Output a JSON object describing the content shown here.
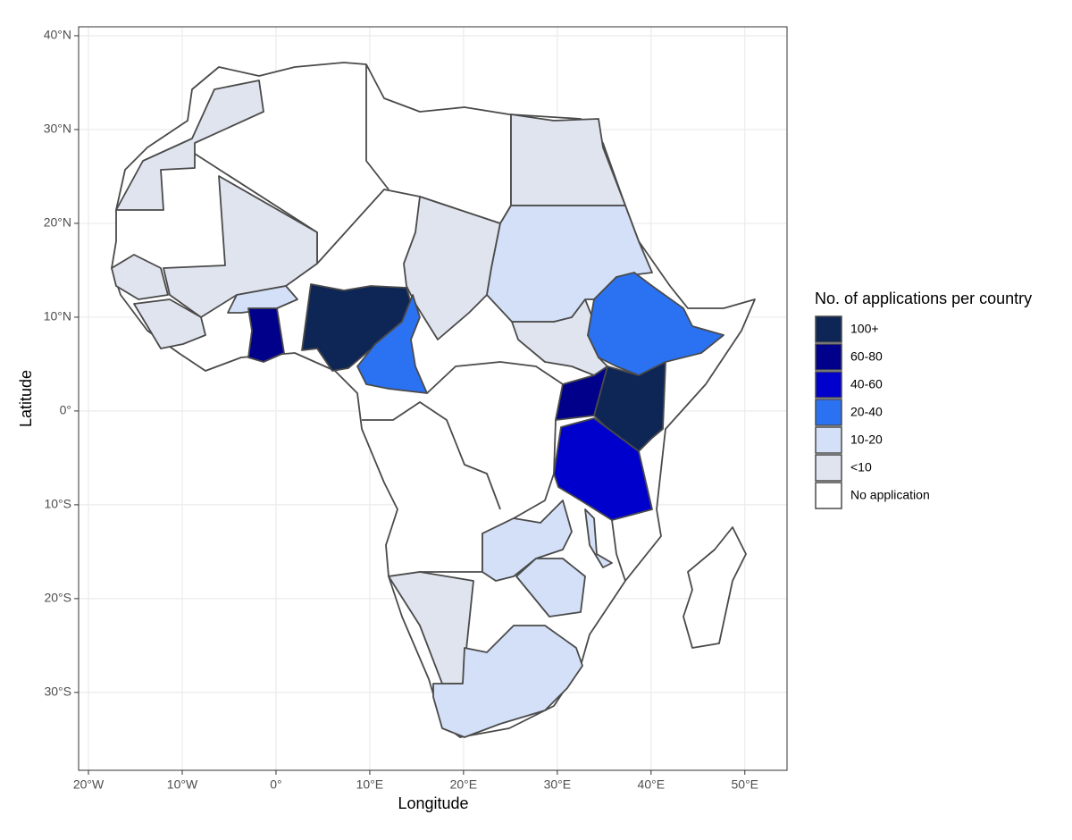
{
  "chart_data": {
    "type": "choropleth",
    "xlabel": "Longitude",
    "ylabel": "Latitude",
    "xlim": [
      -21.05,
      54.5
    ],
    "ylim": [
      -38.3,
      40.95
    ],
    "xticks": [
      {
        "value": -20,
        "label": "20°W"
      },
      {
        "value": -10,
        "label": "10°W"
      },
      {
        "value": 0,
        "label": "0°"
      },
      {
        "value": 10,
        "label": "10°E"
      },
      {
        "value": 20,
        "label": "20°E"
      },
      {
        "value": 30,
        "label": "30°E"
      },
      {
        "value": 40,
        "label": "40°E"
      },
      {
        "value": 50,
        "label": "50°E"
      }
    ],
    "yticks": [
      {
        "value": 40,
        "label": "40°N"
      },
      {
        "value": 30,
        "label": "30°N"
      },
      {
        "value": 20,
        "label": "20°N"
      },
      {
        "value": 10,
        "label": "10°N"
      },
      {
        "value": 0,
        "label": "0°"
      },
      {
        "value": -10,
        "label": "10°S"
      },
      {
        "value": -20,
        "label": "20°S"
      },
      {
        "value": -30,
        "label": "30°S"
      }
    ],
    "grid": true,
    "legend": {
      "title": "No. of applications per country",
      "position": "right",
      "entries": [
        {
          "name": "100+",
          "color": "#0e2656"
        },
        {
          "name": "60-80",
          "color": "#00008b"
        },
        {
          "name": "40-60",
          "color": "#0000cd"
        },
        {
          "name": "20-40",
          "color": "#2a72f2"
        },
        {
          "name": "10-20",
          "color": "#d3e0f7"
        },
        {
          "name": "<10",
          "color": "#e0e4ee"
        },
        {
          "name": "No application",
          "color": "#ffffff"
        }
      ]
    }
  }
}
